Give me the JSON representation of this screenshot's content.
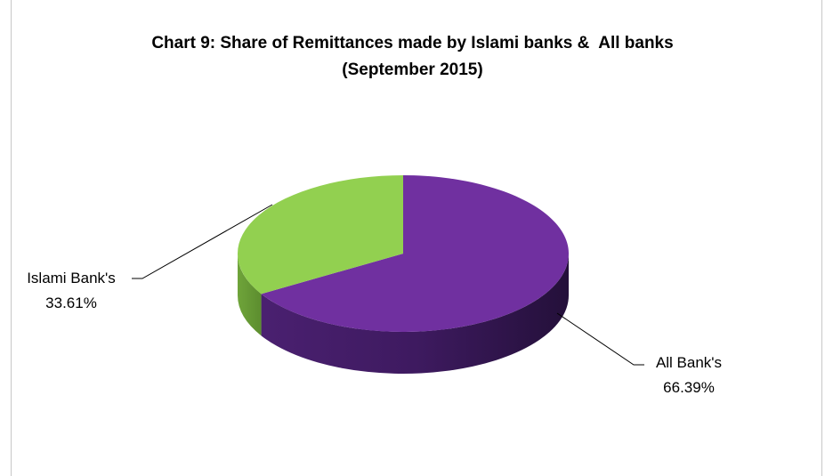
{
  "chart_data": {
    "type": "pie",
    "title_line1": "Chart 9: Share of Remittances made by Islami banks &  All banks",
    "title_line2": "(September 2015)",
    "slices": [
      {
        "label": "All Bank's",
        "value": 66.39,
        "value_label": "66.39%",
        "color": "#7030a0"
      },
      {
        "label": "Islami Bank's",
        "value": 33.61,
        "value_label": "33.61%",
        "color": "#92d050"
      }
    ],
    "legend": "none",
    "style": "3d"
  }
}
